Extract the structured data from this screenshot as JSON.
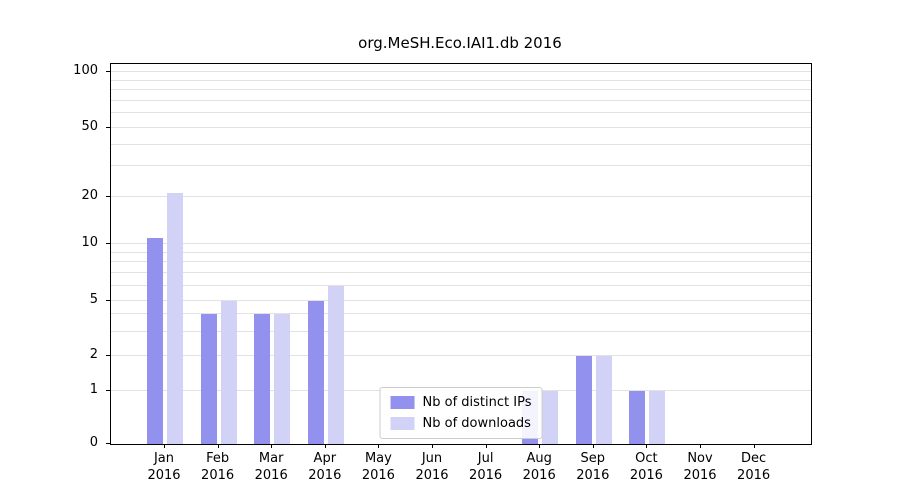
{
  "chart_data": {
    "type": "bar",
    "title": "org.MeSH.Eco.IAI1.db 2016",
    "x_months": [
      "Jan",
      "Feb",
      "Mar",
      "Apr",
      "May",
      "Jun",
      "Jul",
      "Aug",
      "Sep",
      "Oct",
      "Nov",
      "Dec"
    ],
    "x_year": "2016",
    "series": [
      {
        "name": "Nb of distinct IPs",
        "color": "#9292ee",
        "values": [
          11,
          4,
          4,
          5,
          0,
          0,
          0,
          1,
          2,
          1,
          0,
          0
        ]
      },
      {
        "name": "Nb of downloads",
        "color": "#d2d2f7",
        "values": [
          21,
          5,
          4,
          6,
          0,
          0,
          0,
          1,
          2,
          1,
          0,
          0
        ]
      }
    ],
    "yticks": [
      0,
      1,
      2,
      5,
      10,
      20,
      50,
      100
    ],
    "ylim": [
      0,
      130
    ],
    "scale": "symlog",
    "grid": "horizontal-log-minor",
    "legend_position": "lower center"
  }
}
